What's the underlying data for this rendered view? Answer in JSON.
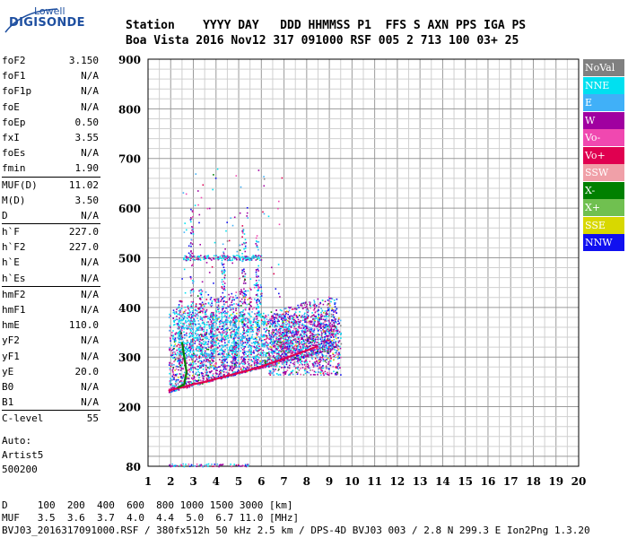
{
  "logo": {
    "top": "Lowell",
    "main": "DIGISONDE"
  },
  "header": {
    "line1": "Station    YYYY DAY   DDD HHMMSS P1  FFS S AXN PPS IGA PS",
    "line2": "Boa Vista 2016 Nov12 317 091000 RSF 005 2 713 100 03+ 25"
  },
  "params": [
    {
      "label": "foF2",
      "value": "3.150"
    },
    {
      "label": "foF1",
      "value": "N/A"
    },
    {
      "label": "foF1p",
      "value": "N/A"
    },
    {
      "label": "foE",
      "value": "N/A"
    },
    {
      "label": "foEp",
      "value": "0.50"
    },
    {
      "label": "fxI",
      "value": "3.55"
    },
    {
      "label": "foEs",
      "value": "N/A"
    },
    {
      "label": "fmin",
      "value": "1.90"
    },
    {
      "sep": true
    },
    {
      "label": "MUF(D)",
      "value": "11.02"
    },
    {
      "label": "M(D)",
      "value": "3.50"
    },
    {
      "label": "D",
      "value": "N/A"
    },
    {
      "sep": true
    },
    {
      "label": "h`F",
      "value": "227.0"
    },
    {
      "label": "h`F2",
      "value": "227.0"
    },
    {
      "label": "h`E",
      "value": "N/A"
    },
    {
      "label": "h`Es",
      "value": "N/A"
    },
    {
      "sep": true
    },
    {
      "label": "hmF2",
      "value": "N/A"
    },
    {
      "label": "hmF1",
      "value": "N/A"
    },
    {
      "label": "hmE",
      "value": "110.0"
    },
    {
      "label": "yF2",
      "value": "N/A"
    },
    {
      "label": "yF1",
      "value": "N/A"
    },
    {
      "label": "yE",
      "value": "20.0"
    },
    {
      "label": "B0",
      "value": "N/A"
    },
    {
      "label": "B1",
      "value": "N/A"
    },
    {
      "sep": true
    },
    {
      "label": "C-level",
      "value": "55"
    }
  ],
  "auto": {
    "line1": "Auto:",
    "line2": "Artist5",
    "line3": "500200"
  },
  "footer": {
    "d_row": "D     100  200  400  600  800 1000 1500 3000 [km]",
    "muf_row": "MUF   3.5  3.6  3.7  4.0  4.4  5.0  6.7 11.0 [MHz]",
    "info": "BVJ03_2016317091000.RSF / 380fx512h 50 kHz 2.5 km / DPS-4D BVJ03 003 / 2.8 N 299.3 E Ion2Png 1.3.20"
  },
  "legend": [
    {
      "label": "NoVal",
      "color": "#808080"
    },
    {
      "label": "NNE",
      "color": "#00e0f0"
    },
    {
      "label": "E",
      "color": "#40b0f8"
    },
    {
      "label": "W",
      "color": "#a000a0"
    },
    {
      "label": "Vo-",
      "color": "#f048b0"
    },
    {
      "label": "Vo+",
      "color": "#e00050"
    },
    {
      "label": "SSW",
      "color": "#f0a0a8"
    },
    {
      "label": "X-",
      "color": "#008000"
    },
    {
      "label": "X+",
      "color": "#70c050"
    },
    {
      "label": "SSE",
      "color": "#d8d800"
    },
    {
      "label": "NNW",
      "color": "#1010f0"
    }
  ],
  "chart_data": {
    "type": "scatter",
    "title": "",
    "xlabel": "",
    "ylabel": "",
    "xlim": [
      1,
      20
    ],
    "ylim": [
      80,
      900
    ],
    "x_ticks": [
      1,
      2,
      3,
      4,
      5,
      6,
      7,
      8,
      9,
      10,
      11,
      12,
      13,
      14,
      15,
      16,
      17,
      18,
      19,
      20
    ],
    "y_ticks": [
      80,
      200,
      300,
      400,
      500,
      600,
      700,
      800,
      900
    ],
    "grid": true,
    "legend_position": "right",
    "traces": [
      {
        "name": "Vo- trace",
        "color": "#e00050",
        "points": [
          [
            1.9,
            232
          ],
          [
            2.2,
            236
          ],
          [
            2.6,
            240
          ],
          [
            3.0,
            245
          ],
          [
            3.5,
            250
          ],
          [
            4.0,
            256
          ],
          [
            4.5,
            262
          ],
          [
            5.0,
            268
          ],
          [
            5.5,
            274
          ],
          [
            6.0,
            281
          ],
          [
            6.5,
            289
          ],
          [
            7.0,
            297
          ],
          [
            7.5,
            305
          ],
          [
            8.0,
            313
          ],
          [
            8.5,
            322
          ]
        ]
      },
      {
        "name": "X- trace",
        "color": "#008000",
        "points": [
          [
            2.3,
            238
          ],
          [
            2.6,
            245
          ],
          [
            2.7,
            270
          ],
          [
            2.6,
            300
          ],
          [
            2.5,
            330
          ]
        ]
      }
    ]
  }
}
